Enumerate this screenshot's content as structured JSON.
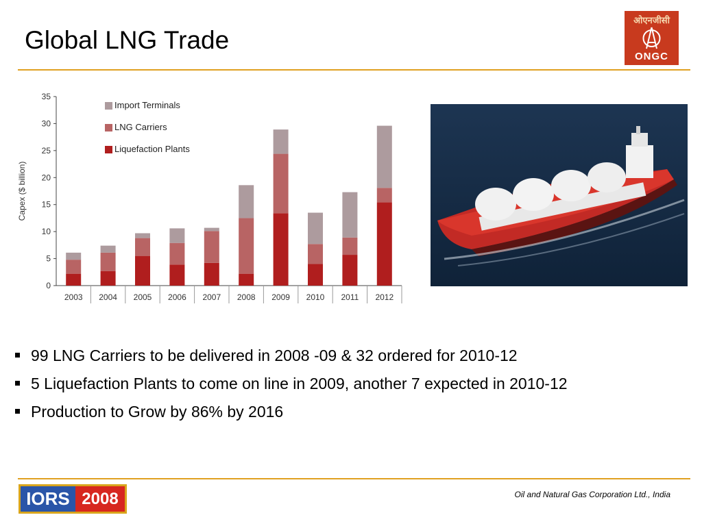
{
  "slide": {
    "title": "Global LNG Trade",
    "logo_hindi": "ओएनजीसी",
    "logo_text": "ONGC",
    "footer_logo_left": "IORS",
    "footer_logo_right": "2008",
    "footer_text": "Oil and Natural Gas Corporation Ltd., India"
  },
  "bullets": [
    "99 LNG Carriers to be delivered in 2008 -09 & 32 ordered for 2010-12",
    "5 Liquefaction Plants to come on line in 2009, another 7 expected in 2010-12",
    "Production to Grow by 86% by 2016"
  ],
  "chart_data": {
    "type": "bar",
    "stacked": true,
    "title": "",
    "xlabel": "",
    "ylabel": "Capex ($ billion)",
    "ylim": [
      0,
      35
    ],
    "yticks": [
      0,
      5,
      10,
      15,
      20,
      25,
      30,
      35
    ],
    "categories": [
      "2003",
      "2004",
      "2005",
      "2006",
      "2007",
      "2008",
      "2009",
      "2010",
      "2011",
      "2012"
    ],
    "legend_position": "top-left",
    "series": [
      {
        "name": "Liquefaction Plants",
        "color": "#b01e1e",
        "values": [
          2.2,
          2.7,
          5.5,
          3.9,
          4.2,
          2.2,
          13.4,
          4.0,
          5.7,
          15.4
        ]
      },
      {
        "name": "LNG Carriers",
        "color": "#b86464",
        "values": [
          2.6,
          3.4,
          3.3,
          4.0,
          5.9,
          10.3,
          11.0,
          3.7,
          3.2,
          2.7
        ]
      },
      {
        "name": "Import Terminals",
        "color": "#ad9b9e",
        "values": [
          1.3,
          1.3,
          0.9,
          2.7,
          0.6,
          6.1,
          4.5,
          5.8,
          8.4,
          11.5
        ]
      }
    ]
  }
}
